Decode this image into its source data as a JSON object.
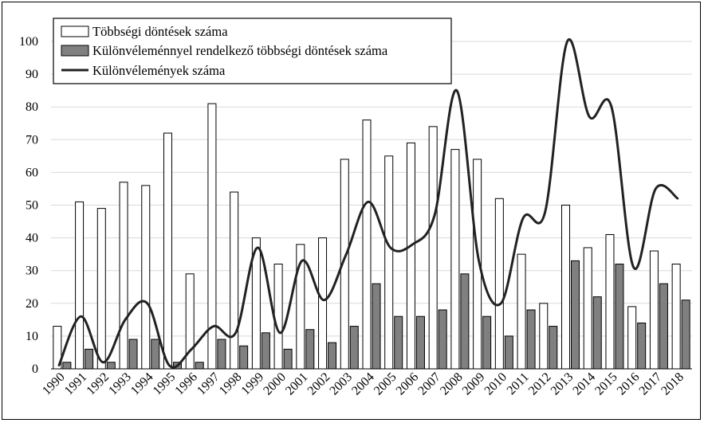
{
  "chart_data": {
    "type": "bar",
    "categories": [
      "1990",
      "1991",
      "1992",
      "1993",
      "1994",
      "1995",
      "1996",
      "1997",
      "1998",
      "1999",
      "2000",
      "2001",
      "2002",
      "2003",
      "2004",
      "2005",
      "2006",
      "2007",
      "2008",
      "2009",
      "2010",
      "2011",
      "2012",
      "2013",
      "2014",
      "2015",
      "2016",
      "2017",
      "2018"
    ],
    "series": [
      {
        "name": "Többségi döntések száma",
        "kind": "bar",
        "color": "#ffffff",
        "values": [
          13,
          51,
          49,
          57,
          56,
          72,
          29,
          81,
          54,
          40,
          32,
          38,
          40,
          64,
          76,
          65,
          69,
          74,
          67,
          64,
          52,
          35,
          20,
          50,
          37,
          41,
          19,
          36,
          32
        ]
      },
      {
        "name": "Különvéleménnyel rendelkező többségi döntések száma",
        "kind": "bar",
        "color": "#808080",
        "values": [
          2,
          6,
          2,
          9,
          9,
          2,
          2,
          9,
          7,
          11,
          6,
          12,
          8,
          13,
          26,
          16,
          16,
          18,
          29,
          16,
          10,
          18,
          13,
          33,
          22,
          32,
          14,
          26,
          21
        ]
      },
      {
        "name": "Különvélemények száma",
        "kind": "line",
        "color": "#222222",
        "values": [
          1,
          16,
          2,
          15,
          20,
          1,
          6,
          13,
          11,
          37,
          11,
          33,
          21,
          35,
          51,
          37,
          38,
          47,
          85,
          33,
          20,
          46,
          48,
          100,
          77,
          80,
          31,
          55,
          52
        ]
      }
    ],
    "yticks": [
      "0",
      "10",
      "20",
      "30",
      "40",
      "50",
      "60",
      "70",
      "80",
      "90",
      "100"
    ],
    "ylim": [
      0,
      100
    ],
    "grid": true,
    "legend": "top-left"
  }
}
